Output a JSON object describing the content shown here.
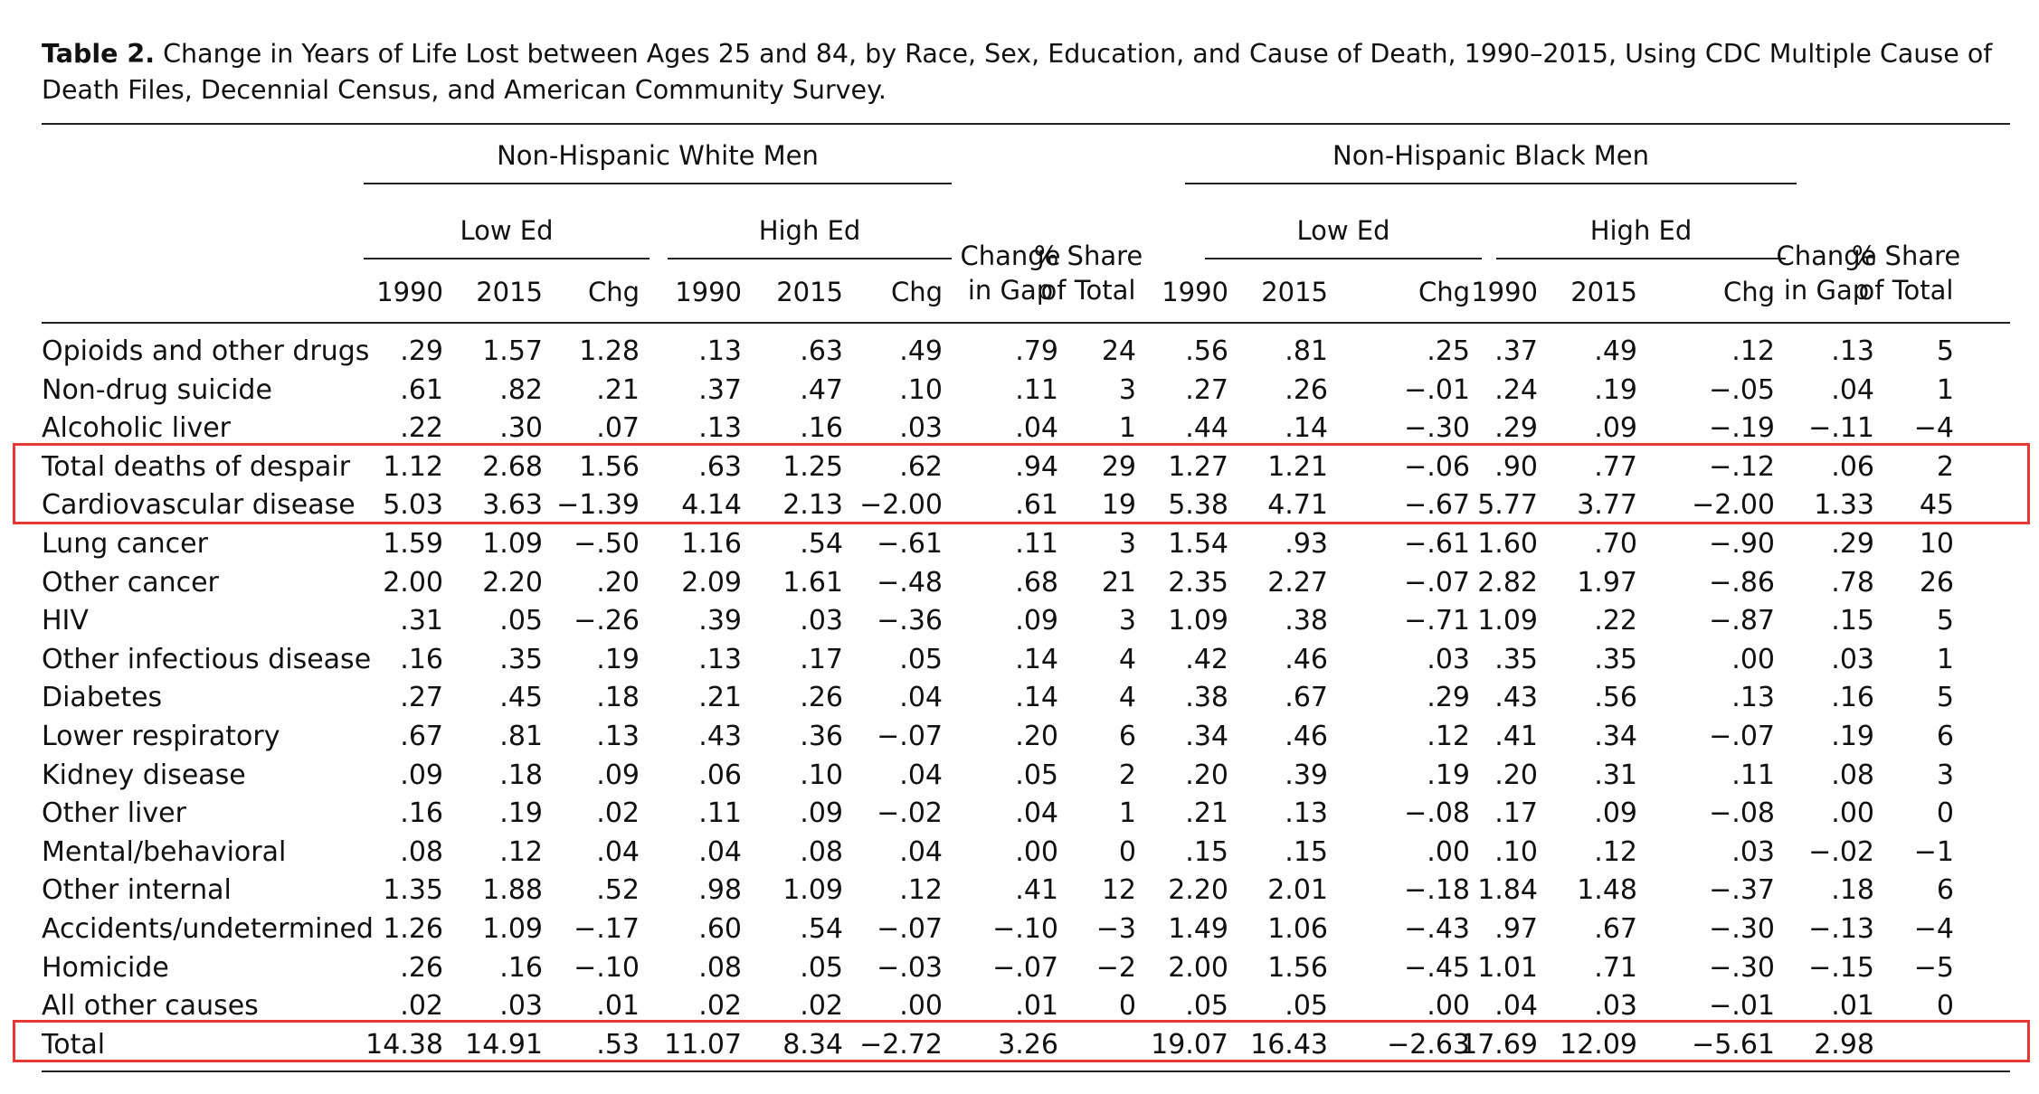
{
  "caption": {
    "label": "Table 2.",
    "text": "Change in Years of Life Lost between Ages 25 and 84, by Race, Sex, Education, and Cause of Death, 1990–2015, Using CDC Multiple Cause of Death Files, Decennial Census, and American Community Survey."
  },
  "groups": [
    "Non-Hispanic White Men",
    "Non-Hispanic Black Men"
  ],
  "subgroups": [
    "Low Ed",
    "High Ed"
  ],
  "columns": [
    "1990",
    "2015",
    "Chg",
    "1990",
    "2015",
    "Chg",
    "Change in Gap",
    "% Share of Total",
    "1990",
    "2015",
    "Chg",
    "1990",
    "2015",
    "Chg",
    "Change in Gap",
    "% Share of Total"
  ],
  "rows": [
    {
      "label": "Opioids and other drugs",
      "values": [
        ".29",
        "1.57",
        "1.28",
        ".13",
        ".63",
        ".49",
        ".79",
        "24",
        ".56",
        ".81",
        ".25",
        ".37",
        ".49",
        ".12",
        ".13",
        "5"
      ]
    },
    {
      "label": "Non-drug suicide",
      "values": [
        ".61",
        ".82",
        ".21",
        ".37",
        ".47",
        ".10",
        ".11",
        "3",
        ".27",
        ".26",
        "−.01",
        ".24",
        ".19",
        "−.05",
        ".04",
        "1"
      ]
    },
    {
      "label": "Alcoholic liver",
      "values": [
        ".22",
        ".30",
        ".07",
        ".13",
        ".16",
        ".03",
        ".04",
        "1",
        ".44",
        ".14",
        "−.30",
        ".29",
        ".09",
        "−.19",
        "−.11",
        "−4"
      ]
    },
    {
      "label": "Total deaths of despair",
      "values": [
        "1.12",
        "2.68",
        "1.56",
        ".63",
        "1.25",
        ".62",
        ".94",
        "29",
        "1.27",
        "1.21",
        "−.06",
        ".90",
        ".77",
        "−.12",
        ".06",
        "2"
      ]
    },
    {
      "label": "Cardiovascular disease",
      "values": [
        "5.03",
        "3.63",
        "−1.39",
        "4.14",
        "2.13",
        "−2.00",
        ".61",
        "19",
        "5.38",
        "4.71",
        "−.67",
        "5.77",
        "3.77",
        "−2.00",
        "1.33",
        "45"
      ]
    },
    {
      "label": "Lung cancer",
      "values": [
        "1.59",
        "1.09",
        "−.50",
        "1.16",
        ".54",
        "−.61",
        ".11",
        "3",
        "1.54",
        ".93",
        "−.61",
        "1.60",
        ".70",
        "−.90",
        ".29",
        "10"
      ]
    },
    {
      "label": "Other cancer",
      "values": [
        "2.00",
        "2.20",
        ".20",
        "2.09",
        "1.61",
        "−.48",
        ".68",
        "21",
        "2.35",
        "2.27",
        "−.07",
        "2.82",
        "1.97",
        "−.86",
        ".78",
        "26"
      ]
    },
    {
      "label": "HIV",
      "values": [
        ".31",
        ".05",
        "−.26",
        ".39",
        ".03",
        "−.36",
        ".09",
        "3",
        "1.09",
        ".38",
        "−.71",
        "1.09",
        ".22",
        "−.87",
        ".15",
        "5"
      ]
    },
    {
      "label": "Other infectious disease",
      "values": [
        ".16",
        ".35",
        ".19",
        ".13",
        ".17",
        ".05",
        ".14",
        "4",
        ".42",
        ".46",
        ".03",
        ".35",
        ".35",
        ".00",
        ".03",
        "1"
      ]
    },
    {
      "label": "Diabetes",
      "values": [
        ".27",
        ".45",
        ".18",
        ".21",
        ".26",
        ".04",
        ".14",
        "4",
        ".38",
        ".67",
        ".29",
        ".43",
        ".56",
        ".13",
        ".16",
        "5"
      ]
    },
    {
      "label": "Lower respiratory",
      "values": [
        ".67",
        ".81",
        ".13",
        ".43",
        ".36",
        "−.07",
        ".20",
        "6",
        ".34",
        ".46",
        ".12",
        ".41",
        ".34",
        "−.07",
        ".19",
        "6"
      ]
    },
    {
      "label": "Kidney disease",
      "values": [
        ".09",
        ".18",
        ".09",
        ".06",
        ".10",
        ".04",
        ".05",
        "2",
        ".20",
        ".39",
        ".19",
        ".20",
        ".31",
        ".11",
        ".08",
        "3"
      ]
    },
    {
      "label": "Other liver",
      "values": [
        ".16",
        ".19",
        ".02",
        ".11",
        ".09",
        "−.02",
        ".04",
        "1",
        ".21",
        ".13",
        "−.08",
        ".17",
        ".09",
        "−.08",
        ".00",
        "0"
      ]
    },
    {
      "label": "Mental/behavioral",
      "values": [
        ".08",
        ".12",
        ".04",
        ".04",
        ".08",
        ".04",
        ".00",
        "0",
        ".15",
        ".15",
        ".00",
        ".10",
        ".12",
        ".03",
        "−.02",
        "−1"
      ]
    },
    {
      "label": "Other internal",
      "values": [
        "1.35",
        "1.88",
        ".52",
        ".98",
        "1.09",
        ".12",
        ".41",
        "12",
        "2.20",
        "2.01",
        "−.18",
        "1.84",
        "1.48",
        "−.37",
        ".18",
        "6"
      ]
    },
    {
      "label": "Accidents/undetermined",
      "values": [
        "1.26",
        "1.09",
        "−.17",
        ".60",
        ".54",
        "−.07",
        "−.10",
        "−3",
        "1.49",
        "1.06",
        "−.43",
        ".97",
        ".67",
        "−.30",
        "−.13",
        "−4"
      ]
    },
    {
      "label": "Homicide",
      "values": [
        ".26",
        ".16",
        "−.10",
        ".08",
        ".05",
        "−.03",
        "−.07",
        "−2",
        "2.00",
        "1.56",
        "−.45",
        "1.01",
        ".71",
        "−.30",
        "−.15",
        "−5"
      ]
    },
    {
      "label": "All other causes",
      "values": [
        ".02",
        ".03",
        ".01",
        ".02",
        ".02",
        ".00",
        ".01",
        "0",
        ".05",
        ".05",
        ".00",
        ".04",
        ".03",
        "−.01",
        ".01",
        "0"
      ]
    },
    {
      "label": "Total",
      "values": [
        "14.38",
        "14.91",
        ".53",
        "11.07",
        "8.34",
        "−2.72",
        "3.26",
        "",
        "19.07",
        "16.43",
        "−2.63",
        "17.69",
        "12.09",
        "−5.61",
        "2.98",
        ""
      ]
    }
  ],
  "highlight_color": "#e53935"
}
